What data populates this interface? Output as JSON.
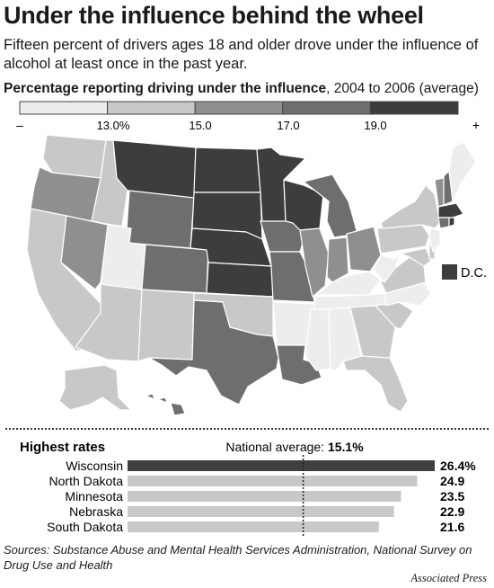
{
  "headline": "Under the influence behind the wheel",
  "subhead": "Fifteen percent of drivers ages 18 and older drove under the influence of alcohol at least once in the past year.",
  "map_title_bold": "Percentage reporting driving under the influence",
  "map_title_rest": ", 2004 to 2006 (average)",
  "legend": {
    "low_symbol": "–",
    "high_symbol": "+",
    "ticks": [
      "13.0%",
      "15.0",
      "17.0",
      "19.0"
    ],
    "colors": [
      "#ededed",
      "#c8c8c8",
      "#8f8f8f",
      "#6e6e6e",
      "#3d3d3d"
    ]
  },
  "dc_label": "D.C.",
  "chart_data": {
    "type": "bar",
    "orientation": "horizontal",
    "title": "Highest rates",
    "reference_line": {
      "label": "National average:",
      "value_label": "15.1%",
      "value": 15.1
    },
    "categories": [
      "Wisconsin",
      "North Dakota",
      "Minnesota",
      "Nebraska",
      "South Dakota"
    ],
    "values": [
      26.4,
      24.9,
      23.5,
      22.9,
      21.6
    ],
    "value_labels": [
      "26.4%",
      "24.9",
      "23.5",
      "22.9",
      "21.6"
    ],
    "xlim": [
      0,
      26.4
    ],
    "colors": {
      "highlight": "#3f3f3f",
      "other": "#c8c8c8"
    }
  },
  "sources": "Sources: Substance Abuse and Mental Health Services Administration, National Survey on Drug Use and Health",
  "credit": "Associated Press"
}
